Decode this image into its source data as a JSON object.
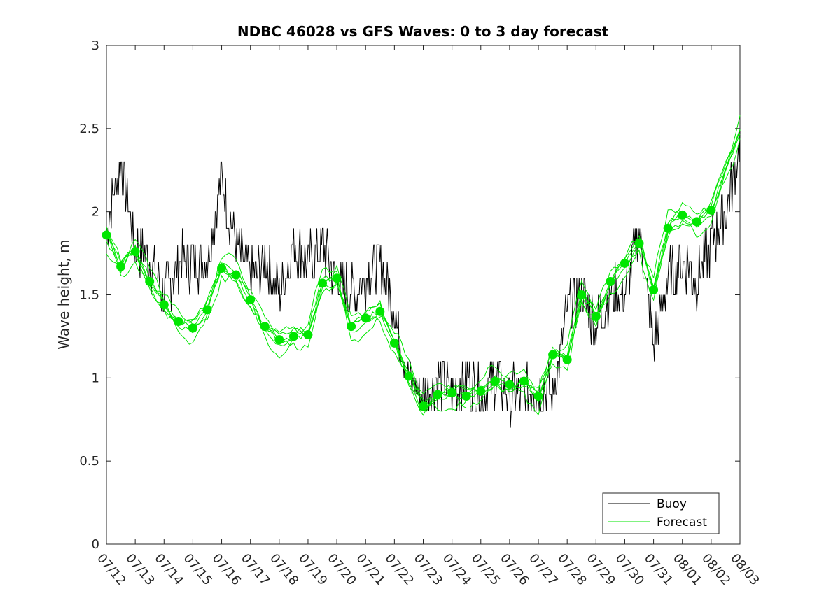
{
  "chart_data": {
    "type": "line",
    "title": "NDBC 46028 vs GFS Waves: 0 to 3 day forecast",
    "xlabel": "",
    "ylabel": "Wave height, m",
    "ylim": [
      0,
      3
    ],
    "yticks": [
      0,
      0.5,
      1,
      1.5,
      2,
      2.5,
      3
    ],
    "ytick_labels": [
      "0",
      "0.5",
      "1",
      "1.5",
      "2",
      "2.5",
      "3"
    ],
    "xlim": [
      "07/12",
      "08/03"
    ],
    "xtick_labels": [
      "07/12",
      "07/13",
      "07/14",
      "07/15",
      "07/16",
      "07/17",
      "07/18",
      "07/19",
      "07/20",
      "07/21",
      "07/22",
      "07/23",
      "07/24",
      "07/25",
      "07/26",
      "07/27",
      "07/28",
      "07/29",
      "07/30",
      "07/31",
      "08/01",
      "08/02",
      "08/03"
    ],
    "grid": false,
    "legend": {
      "placement": "bottom-right",
      "entries": [
        "Buoy",
        "Forecast"
      ]
    },
    "colors": {
      "buoy": "#000000",
      "forecast": "#00e600",
      "axis": "#262626"
    },
    "series": [
      {
        "name": "Buoy",
        "x": [
          "07/12",
          "07/12 12:00",
          "07/13",
          "07/13 12:00",
          "07/14",
          "07/14 12:00",
          "07/15",
          "07/15 12:00",
          "07/16",
          "07/16 12:00",
          "07/17",
          "07/17 12:00",
          "07/18",
          "07/18 12:00",
          "07/19",
          "07/19 12:00",
          "07/20",
          "07/20 12:00",
          "07/21",
          "07/21 12:00",
          "07/22",
          "07/22 12:00",
          "07/23",
          "07/23 12:00",
          "07/24",
          "07/24 12:00",
          "07/25",
          "07/25 12:00",
          "07/26",
          "07/26 12:00",
          "07/27",
          "07/27 12:00",
          "07/28",
          "07/28 12:00",
          "07/29",
          "07/29 12:00",
          "07/30",
          "07/30 12:00",
          "07/31",
          "07/31 12:00",
          "08/01",
          "08/01 12:00",
          "08/02",
          "08/02 12:00",
          "08/03"
        ],
        "values": [
          1.9,
          2.3,
          1.8,
          1.7,
          1.5,
          1.7,
          1.7,
          1.7,
          2.2,
          1.8,
          1.6,
          1.7,
          1.5,
          1.8,
          1.7,
          1.8,
          1.6,
          1.5,
          1.6,
          1.7,
          1.4,
          1.0,
          0.9,
          1.0,
          0.9,
          1.0,
          0.9,
          1.0,
          0.9,
          0.9,
          0.95,
          0.9,
          1.4,
          1.5,
          1.3,
          1.5,
          1.5,
          1.9,
          1.2,
          1.6,
          1.7,
          1.6,
          1.8,
          2.0,
          2.4
        ]
      },
      {
        "name": "Forecast",
        "x": [
          "07/12",
          "07/12 12:00",
          "07/13",
          "07/13 12:00",
          "07/14",
          "07/14 12:00",
          "07/15",
          "07/15 12:00",
          "07/16",
          "07/16 12:00",
          "07/17",
          "07/17 12:00",
          "07/18",
          "07/18 12:00",
          "07/19",
          "07/19 12:00",
          "07/20",
          "07/20 12:00",
          "07/21",
          "07/21 12:00",
          "07/22",
          "07/22 12:00",
          "07/23",
          "07/23 12:00",
          "07/24",
          "07/24 12:00",
          "07/25",
          "07/25 12:00",
          "07/26",
          "07/26 12:00",
          "07/27",
          "07/27 12:00",
          "07/28",
          "07/28 12:00",
          "07/29",
          "07/29 12:00",
          "07/30",
          "07/30 12:00",
          "07/31",
          "07/31 12:00",
          "08/01",
          "08/01 12:00",
          "08/02",
          "08/02 12:00",
          "08/03"
        ],
        "values": [
          1.86,
          1.67,
          1.76,
          1.58,
          1.44,
          1.34,
          1.3,
          1.41,
          1.66,
          1.62,
          1.47,
          1.31,
          1.23,
          1.25,
          1.26,
          1.57,
          1.6,
          1.31,
          1.36,
          1.4,
          1.21,
          1.01,
          0.83,
          0.9,
          0.91,
          0.89,
          0.92,
          0.98,
          0.96,
          0.98,
          0.89,
          1.14,
          1.11,
          1.5,
          1.37,
          1.58,
          1.69,
          1.81,
          1.53,
          1.9,
          1.98,
          1.94,
          2.01,
          2.25,
          2.48
        ]
      }
    ],
    "forecast_markers": {
      "x": [
        "07/12",
        "07/12 12:00",
        "07/13",
        "07/13 12:00",
        "07/14",
        "07/14 12:00",
        "07/15",
        "07/15 12:00",
        "07/16",
        "07/16 12:00",
        "07/17",
        "07/17 12:00",
        "07/18",
        "07/18 12:00",
        "07/19",
        "07/19 12:00",
        "07/20",
        "07/20 12:00",
        "07/21",
        "07/21 12:00",
        "07/22",
        "07/22 12:00",
        "07/23",
        "07/23 12:00",
        "07/24",
        "07/24 12:00",
        "07/25",
        "07/25 12:00",
        "07/26",
        "07/26 12:00",
        "07/27",
        "07/27 12:00",
        "07/28",
        "07/28 12:00",
        "07/29",
        "07/29 12:00",
        "07/30",
        "07/30 12:00",
        "07/31",
        "07/31 12:00",
        "08/01",
        "08/01 12:00",
        "08/02"
      ],
      "values": [
        1.86,
        1.67,
        1.76,
        1.58,
        1.44,
        1.34,
        1.3,
        1.41,
        1.66,
        1.62,
        1.47,
        1.31,
        1.23,
        1.25,
        1.26,
        1.57,
        1.6,
        1.31,
        1.36,
        1.4,
        1.21,
        1.01,
        0.83,
        0.9,
        0.91,
        0.89,
        0.92,
        0.98,
        0.96,
        0.98,
        0.89,
        1.14,
        1.11,
        1.5,
        1.37,
        1.58,
        1.69,
        1.81,
        1.53,
        1.9,
        1.98,
        1.94,
        2.01
      ]
    }
  }
}
